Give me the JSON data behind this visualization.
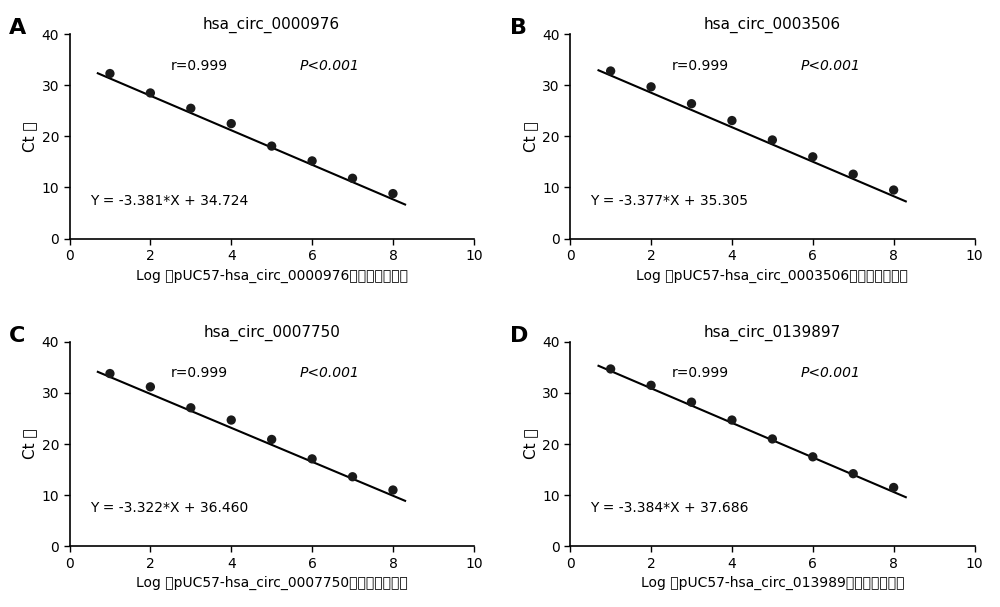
{
  "panels": [
    {
      "label": "A",
      "title": "hsa_circ_0000976",
      "slope": -3.381,
      "intercept": 34.724,
      "r": "r=0.999",
      "p": "P<0.001",
      "equation": "Y = -3.381*X + 34.724",
      "xlabel_pre": "Log （pUC57-hsa_circ_0000976",
      "xlabel_post": "质粒的拷贝数）",
      "x_data": [
        1,
        2,
        3,
        4,
        5,
        6,
        7,
        8
      ],
      "y_data": [
        32.3,
        28.5,
        25.5,
        22.5,
        18.1,
        15.2,
        11.8,
        8.8
      ]
    },
    {
      "label": "B",
      "title": "hsa_circ_0003506",
      "slope": -3.377,
      "intercept": 35.305,
      "r": "r=0.999",
      "p": "P<0.001",
      "equation": "Y = -3.377*X + 35.305",
      "xlabel_pre": "Log （pUC57-hsa_circ_0003506",
      "xlabel_post": "质粒的拷贝数）",
      "x_data": [
        1,
        2,
        3,
        4,
        5,
        6,
        7,
        8
      ],
      "y_data": [
        32.8,
        29.7,
        26.4,
        23.1,
        19.3,
        16.0,
        12.6,
        9.5
      ]
    },
    {
      "label": "C",
      "title": "hsa_circ_0007750",
      "slope": -3.322,
      "intercept": 36.46,
      "r": "r=0.999",
      "p": "P<0.001",
      "equation": "Y = -3.322*X + 36.460",
      "xlabel_pre": "Log （pUC57-hsa_circ_0007750",
      "xlabel_post": "质粒的拷贝数）",
      "x_data": [
        1,
        2,
        3,
        4,
        5,
        6,
        7,
        8
      ],
      "y_data": [
        33.8,
        31.2,
        27.1,
        24.7,
        20.9,
        17.1,
        13.6,
        11.0
      ]
    },
    {
      "label": "D",
      "title": "hsa_circ_0139897",
      "slope": -3.384,
      "intercept": 37.686,
      "r": "r=0.999",
      "p": "P<0.001",
      "equation": "Y = -3.384*X + 37.686",
      "xlabel_pre": "Log （pUC57-hsa_circ_013989",
      "xlabel_post": "质粒的拷贝数）",
      "x_data": [
        1,
        2,
        3,
        4,
        5,
        6,
        7,
        8
      ],
      "y_data": [
        34.7,
        31.5,
        28.2,
        24.7,
        21.0,
        17.5,
        14.2,
        11.5
      ]
    }
  ],
  "ylabel": "Ct 値",
  "ylim": [
    0,
    40
  ],
  "xlim": [
    0,
    10
  ],
  "yticks": [
    0,
    10,
    20,
    30,
    40
  ],
  "xticks": [
    0,
    2,
    4,
    6,
    8,
    10
  ],
  "bg_color": "#ffffff",
  "plot_bg": "#ffffff",
  "line_color": "#000000",
  "dot_color": "#1a1a1a",
  "dot_size": 45,
  "line_width": 1.5
}
